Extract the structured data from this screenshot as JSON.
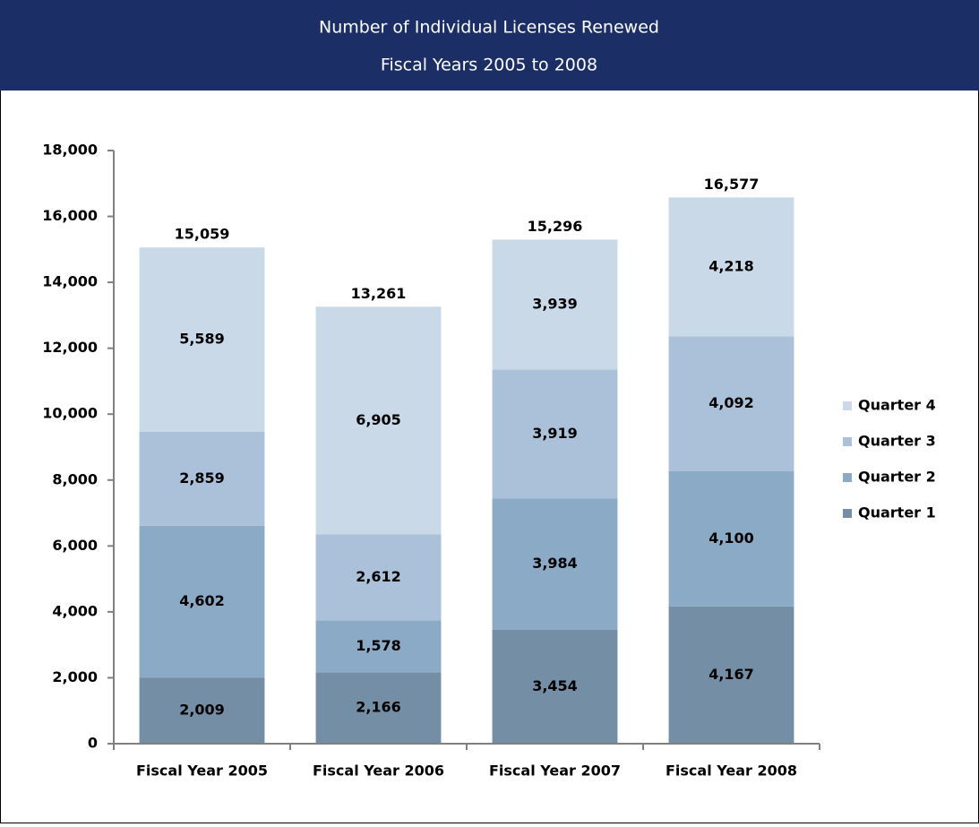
{
  "chart_data": {
    "type": "stacked_bar",
    "title": "Number of Individual Licenses Renewed",
    "subtitle": "Fiscal Years 2005 to 2008",
    "categories": [
      "Fiscal Year 2005",
      "Fiscal Year 2006",
      "Fiscal Year 2007",
      "Fiscal Year 2008"
    ],
    "series": [
      {
        "name": "Quarter 1",
        "color": "#738ea5",
        "values": [
          2009,
          2166,
          3454,
          4167
        ],
        "value_labels": [
          "2,009",
          "2,166",
          "3,454",
          "4,167"
        ]
      },
      {
        "name": "Quarter 2",
        "color": "#8aaac6",
        "values": [
          4602,
          1578,
          3984,
          4100
        ],
        "value_labels": [
          "4,602",
          "1,578",
          "3,984",
          "4,100"
        ]
      },
      {
        "name": "Quarter 3",
        "color": "#abc1da",
        "values": [
          2859,
          2612,
          3919,
          4092
        ],
        "value_labels": [
          "2,859",
          "2,612",
          "3,919",
          "4,092"
        ]
      },
      {
        "name": "Quarter 4",
        "color": "#cad9e8",
        "values": [
          5589,
          6905,
          3939,
          4218
        ],
        "value_labels": [
          "5,589",
          "6,905",
          "3,939",
          "4,218"
        ]
      }
    ],
    "totals": [
      15059,
      13261,
      15296,
      16577
    ],
    "totals_labels": [
      "15,059",
      "13,261",
      "15,296",
      "16,577"
    ],
    "ylim": [
      0,
      18000
    ],
    "yticks": [
      0,
      {
        "value": 2000,
        "label": "2,000"
      },
      {
        "value": 4000,
        "label": "4,000"
      },
      {
        "value": 6000,
        "label": "6,000"
      },
      {
        "value": 8000,
        "label": "8,000"
      },
      {
        "value": 10000,
        "label": "10,000"
      },
      {
        "value": 12000,
        "label": "12,000"
      },
      {
        "value": 14000,
        "label": "14,000"
      },
      {
        "value": 16000,
        "label": "16,000"
      },
      {
        "value": 18000,
        "label": "18,000"
      }
    ],
    "legend": "right",
    "grid": false
  }
}
